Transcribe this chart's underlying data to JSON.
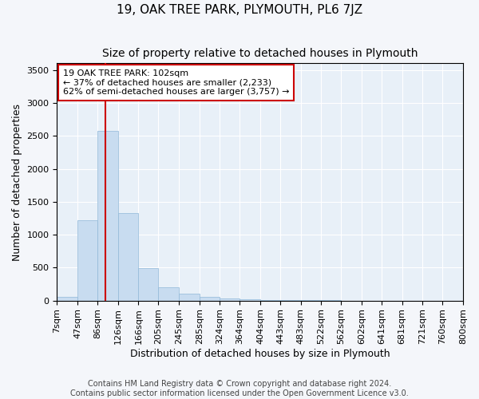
{
  "title": "19, OAK TREE PARK, PLYMOUTH, PL6 7JZ",
  "subtitle": "Size of property relative to detached houses in Plymouth",
  "xlabel": "Distribution of detached houses by size in Plymouth",
  "ylabel": "Number of detached properties",
  "footer_line1": "Contains HM Land Registry data © Crown copyright and database right 2024.",
  "footer_line2": "Contains public sector information licensed under the Open Government Licence v3.0.",
  "annotation_line1": "19 OAK TREE PARK: 102sqm",
  "annotation_line2": "← 37% of detached houses are smaller (2,233)",
  "annotation_line3": "62% of semi-detached houses are larger (3,757) →",
  "property_size": 102,
  "bin_edges": [
    7,
    47,
    86,
    126,
    166,
    205,
    245,
    285,
    324,
    364,
    404,
    443,
    483,
    522,
    562,
    602,
    641,
    681,
    721,
    760,
    800
  ],
  "bar_heights": [
    55,
    1220,
    2580,
    1330,
    490,
    200,
    105,
    55,
    35,
    20,
    12,
    8,
    5,
    3,
    2,
    2,
    1,
    1,
    1,
    1
  ],
  "bar_color": "#c8dcf0",
  "bar_edgecolor": "#90b8d8",
  "vline_color": "#cc0000",
  "annotation_box_edgecolor": "#cc0000",
  "ylim": [
    0,
    3600
  ],
  "yticks": [
    0,
    500,
    1000,
    1500,
    2000,
    2500,
    3000,
    3500
  ],
  "background_color": "#f4f6fa",
  "plot_background": "#e8f0f8",
  "grid_color": "#ffffff",
  "title_fontsize": 11,
  "subtitle_fontsize": 10,
  "axis_label_fontsize": 9,
  "tick_fontsize": 8,
  "annotation_fontsize": 8,
  "footer_fontsize": 7
}
